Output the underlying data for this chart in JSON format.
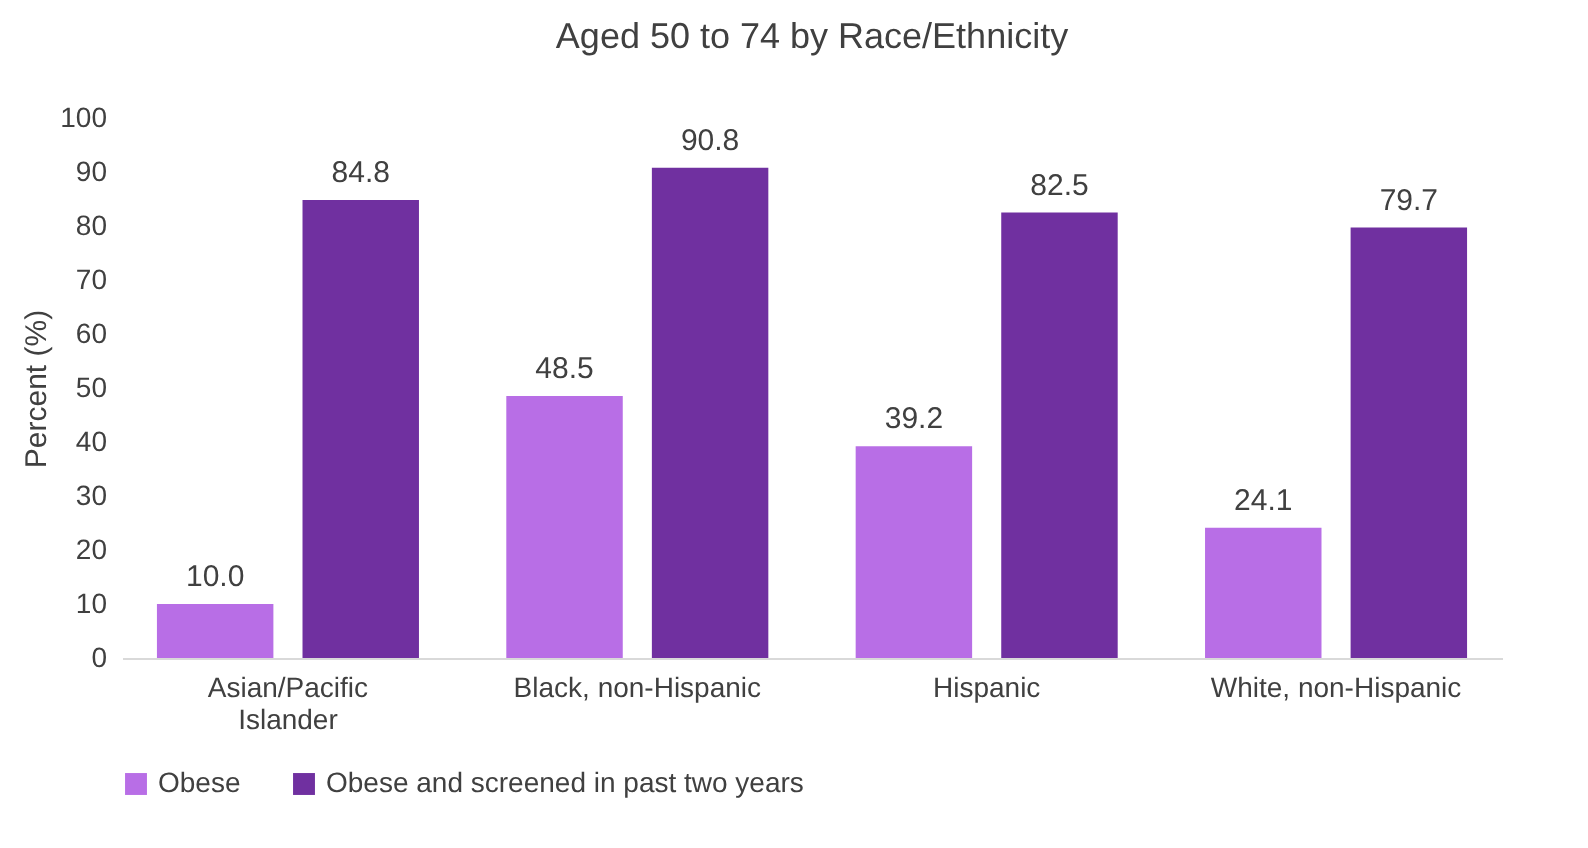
{
  "chart_data": {
    "type": "bar",
    "title": "Aged 50 to 74 by Race/Ethnicity",
    "ylabel": "Percent (%)",
    "categories": [
      "Asian/Pacific Islander",
      "Black, non-Hispanic",
      "Hispanic",
      "White, non-Hispanic"
    ],
    "series": [
      {
        "name": "Obese",
        "color": "#b86ee6",
        "values": [
          10.0,
          48.5,
          39.2,
          24.1
        ],
        "value_labels": [
          "10.0",
          "48.5",
          "39.2",
          "24.1"
        ]
      },
      {
        "name": "Obese and screened in past two years",
        "color": "#7030a0",
        "values": [
          84.8,
          90.8,
          82.5,
          79.7
        ],
        "value_labels": [
          "84.8",
          "90.8",
          "82.5",
          "79.7"
        ]
      }
    ],
    "ylim": [
      0,
      100
    ],
    "yticks": [
      0,
      10,
      20,
      30,
      40,
      50,
      60,
      70,
      80,
      90,
      100
    ],
    "grid": false,
    "legend": "bottom"
  }
}
